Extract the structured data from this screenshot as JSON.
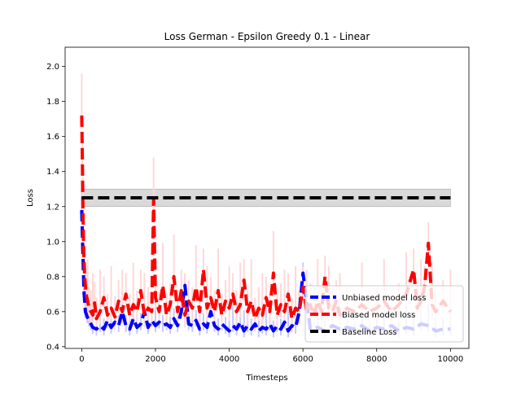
{
  "chart_data": {
    "type": "line",
    "title": "Loss German - Epsilon Greedy 0.1 - Linear",
    "xlabel": "Timesteps",
    "ylabel": "Loss",
    "xlim": [
      -450,
      10500
    ],
    "ylim": [
      0.39,
      2.11
    ],
    "xticks": [
      0,
      2000,
      4000,
      6000,
      8000,
      10000
    ],
    "yticks": [
      0.4,
      0.6,
      0.8,
      1.0,
      1.2,
      1.4,
      1.6,
      1.8,
      2.0
    ],
    "ytick_labels": [
      "0.4",
      "0.6",
      "0.8",
      "1.0",
      "1.2",
      "1.4",
      "1.6",
      "1.8",
      "2.0"
    ],
    "grid": false,
    "legend_position": "lower-right",
    "series": [
      {
        "name": "Unbiased model loss",
        "color": "#0000ff",
        "band_color": "#c8c8ff",
        "linestyle": "dashed",
        "x": [
          0,
          30,
          60,
          100,
          150,
          200,
          250,
          300,
          400,
          500,
          600,
          700,
          800,
          900,
          1000,
          1100,
          1200,
          1300,
          1400,
          1500,
          1600,
          1700,
          1800,
          1900,
          2000,
          2100,
          2200,
          2300,
          2400,
          2500,
          2600,
          2700,
          2800,
          2900,
          3000,
          3100,
          3200,
          3300,
          3400,
          3500,
          3600,
          3700,
          3800,
          3900,
          4000,
          4100,
          4200,
          4300,
          4400,
          4500,
          4600,
          4700,
          4800,
          4900,
          5000,
          5100,
          5200,
          5300,
          5400,
          5500,
          5600,
          5700,
          5800,
          5900,
          6000,
          6200,
          6400,
          6600,
          6800,
          7000,
          7200,
          7400,
          7600,
          7800,
          8000,
          8200,
          8400,
          8600,
          8800,
          9000,
          9200,
          9400,
          9600,
          9800,
          10000
        ],
        "values": [
          1.18,
          0.95,
          0.72,
          0.6,
          0.57,
          0.55,
          0.53,
          0.51,
          0.5,
          0.52,
          0.5,
          0.55,
          0.51,
          0.54,
          0.52,
          0.6,
          0.52,
          0.5,
          0.56,
          0.51,
          0.53,
          0.6,
          0.51,
          0.55,
          0.52,
          0.54,
          0.52,
          0.53,
          0.51,
          0.56,
          0.52,
          0.6,
          0.75,
          0.53,
          0.52,
          0.55,
          0.5,
          0.53,
          0.51,
          0.6,
          0.52,
          0.5,
          0.53,
          0.51,
          0.49,
          0.52,
          0.5,
          0.54,
          0.49,
          0.52,
          0.5,
          0.53,
          0.49,
          0.51,
          0.5,
          0.53,
          0.49,
          0.52,
          0.5,
          0.54,
          0.49,
          0.52,
          0.51,
          0.6,
          0.82,
          0.5,
          0.51,
          0.49,
          0.52,
          0.5,
          0.51,
          0.5,
          0.52,
          0.49,
          0.51,
          0.5,
          0.52,
          0.49,
          0.51,
          0.5,
          0.53,
          0.52,
          0.49,
          0.5,
          0.5
        ]
      },
      {
        "name": "Biased model loss",
        "color": "#ff0000",
        "band_color": "#ffd8d8",
        "linestyle": "dashed",
        "x": [
          0,
          15,
          30,
          50,
          80,
          120,
          160,
          200,
          250,
          300,
          350,
          400,
          500,
          600,
          700,
          800,
          900,
          1000,
          1100,
          1200,
          1300,
          1400,
          1500,
          1600,
          1700,
          1800,
          1900,
          1950,
          2000,
          2100,
          2200,
          2300,
          2400,
          2500,
          2600,
          2700,
          2800,
          2900,
          3000,
          3100,
          3200,
          3300,
          3400,
          3500,
          3600,
          3700,
          3800,
          3900,
          4000,
          4100,
          4200,
          4300,
          4400,
          4500,
          4600,
          4700,
          4800,
          4900,
          5000,
          5100,
          5200,
          5300,
          5400,
          5500,
          5600,
          5700,
          5800,
          5900,
          6000,
          6100,
          6200,
          6300,
          6400,
          6500,
          6600,
          6700,
          6800,
          6900,
          7000,
          7200,
          7400,
          7600,
          7800,
          8000,
          8200,
          8400,
          8600,
          8800,
          9000,
          9100,
          9200,
          9300,
          9400,
          9500,
          9600,
          9800,
          10000
        ],
        "values": [
          1.72,
          1.5,
          1.25,
          0.98,
          0.8,
          0.7,
          0.66,
          0.62,
          0.6,
          0.58,
          0.65,
          0.56,
          0.6,
          0.68,
          0.58,
          0.62,
          0.57,
          0.66,
          0.6,
          0.7,
          0.58,
          0.64,
          0.6,
          0.72,
          0.58,
          0.62,
          0.6,
          1.24,
          0.68,
          0.6,
          0.75,
          0.58,
          0.64,
          0.8,
          0.6,
          0.72,
          0.58,
          0.66,
          0.62,
          0.74,
          0.6,
          0.84,
          0.62,
          0.68,
          0.6,
          0.72,
          0.58,
          0.66,
          0.62,
          0.7,
          0.6,
          0.64,
          0.78,
          0.6,
          0.66,
          0.56,
          0.62,
          0.58,
          0.68,
          0.6,
          0.82,
          0.58,
          0.64,
          0.6,
          0.7,
          0.56,
          0.62,
          0.6,
          0.74,
          0.6,
          0.64,
          0.58,
          0.66,
          0.6,
          0.8,
          0.62,
          0.6,
          0.66,
          0.58,
          0.62,
          0.6,
          0.64,
          0.6,
          0.62,
          0.66,
          0.6,
          0.64,
          0.7,
          0.84,
          0.62,
          0.66,
          0.74,
          0.99,
          0.64,
          0.6,
          0.66,
          0.6
        ]
      },
      {
        "name": "Baseline Loss",
        "color": "#000000",
        "band_color": "#d9d9d9",
        "linestyle": "dashed",
        "x": [
          0,
          10000
        ],
        "values": [
          1.25,
          1.25
        ],
        "band": [
          1.2,
          1.3
        ]
      }
    ]
  }
}
